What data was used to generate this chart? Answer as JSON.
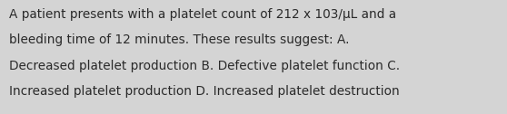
{
  "text_lines": [
    "A patient presents with a platelet count of 212 x 103/μL and a",
    "bleeding time of 12 minutes. These results suggest: A.",
    "Decreased platelet production B. Defective platelet function C.",
    "Increased platelet production D. Increased platelet destruction"
  ],
  "background_color": "#d4d4d4",
  "text_color": "#2a2a2a",
  "font_size": 9.8,
  "font_family": "DejaVu Sans",
  "font_weight": "normal",
  "figsize": [
    5.58,
    1.26
  ],
  "dpi": 100
}
